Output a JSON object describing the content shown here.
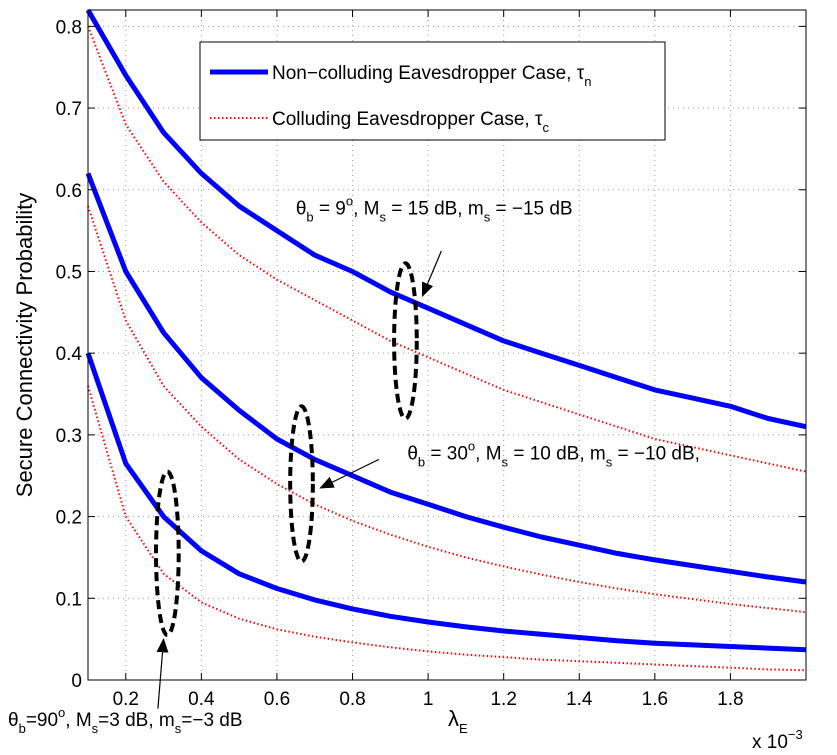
{
  "chart_data": {
    "type": "line",
    "ylabel": "Secure Connectivity Probability",
    "xlabel": {
      "main": "λ",
      "sub": "E"
    },
    "x_multiplier": {
      "prefix": "x 10",
      "exp": "−3"
    },
    "xlim": [
      0.1,
      2.0
    ],
    "ylim": [
      0,
      0.82
    ],
    "xticks": [
      0.2,
      0.4,
      0.6,
      0.8,
      1,
      1.2,
      1.4,
      1.6,
      1.8
    ],
    "xtick_labels": [
      "0.2",
      "0.4",
      "0.6",
      "0.8",
      "1",
      "1.2",
      "1.4",
      "1.6",
      "1.8"
    ],
    "yticks": [
      0,
      0.1,
      0.2,
      0.3,
      0.4,
      0.5,
      0.6,
      0.7,
      0.8
    ],
    "ytick_labels": [
      "0",
      "0.1",
      "0.2",
      "0.3",
      "0.4",
      "0.5",
      "0.6",
      "0.7",
      "0.8"
    ],
    "grid": true,
    "legend": {
      "placement": "top-center",
      "entries": [
        {
          "text": "Non−colluding Eavesdropper Case, τ",
          "sub": "n",
          "style": "solid",
          "color": "#0000ff"
        },
        {
          "text": "Colluding Eavesdropper Case, τ",
          "sub": "c",
          "style": "dotted",
          "color": "#ff0000"
        }
      ]
    },
    "x": [
      0.1,
      0.2,
      0.3,
      0.4,
      0.5,
      0.6,
      0.7,
      0.8,
      0.9,
      1.0,
      1.1,
      1.2,
      1.3,
      1.4,
      1.5,
      1.6,
      1.7,
      1.8,
      1.9,
      2.0
    ],
    "series": [
      {
        "group": "theta9",
        "style": "solid",
        "color": "#0000ff",
        "values": [
          0.82,
          0.74,
          0.67,
          0.62,
          0.58,
          0.55,
          0.52,
          0.5,
          0.475,
          0.455,
          0.435,
          0.415,
          0.4,
          0.385,
          0.37,
          0.355,
          0.345,
          0.335,
          0.32,
          0.31
        ]
      },
      {
        "group": "theta9",
        "style": "dotted",
        "color": "#ff0000",
        "values": [
          0.8,
          0.68,
          0.61,
          0.56,
          0.52,
          0.49,
          0.465,
          0.44,
          0.415,
          0.395,
          0.375,
          0.355,
          0.34,
          0.325,
          0.31,
          0.295,
          0.285,
          0.275,
          0.265,
          0.255
        ]
      },
      {
        "group": "theta30",
        "style": "solid",
        "color": "#0000ff",
        "values": [
          0.62,
          0.5,
          0.425,
          0.37,
          0.33,
          0.295,
          0.27,
          0.25,
          0.23,
          0.215,
          0.2,
          0.187,
          0.175,
          0.165,
          0.155,
          0.147,
          0.14,
          0.133,
          0.126,
          0.12
        ]
      },
      {
        "group": "theta30",
        "style": "dotted",
        "color": "#ff0000",
        "values": [
          0.58,
          0.44,
          0.36,
          0.31,
          0.27,
          0.24,
          0.215,
          0.195,
          0.178,
          0.163,
          0.15,
          0.139,
          0.129,
          0.12,
          0.112,
          0.105,
          0.099,
          0.093,
          0.088,
          0.083
        ]
      },
      {
        "group": "theta90",
        "style": "solid",
        "color": "#0000ff",
        "values": [
          0.4,
          0.265,
          0.2,
          0.158,
          0.13,
          0.112,
          0.098,
          0.087,
          0.078,
          0.071,
          0.065,
          0.06,
          0.056,
          0.052,
          0.048,
          0.045,
          0.043,
          0.041,
          0.039,
          0.037
        ]
      },
      {
        "group": "theta90",
        "style": "dotted",
        "color": "#ff0000",
        "values": [
          0.36,
          0.2,
          0.13,
          0.095,
          0.075,
          0.062,
          0.053,
          0.046,
          0.04,
          0.035,
          0.031,
          0.028,
          0.025,
          0.023,
          0.021,
          0.019,
          0.017,
          0.015,
          0.013,
          0.012
        ]
      }
    ],
    "annotations": [
      {
        "id": "theta9",
        "text": "θ_b = 9^o, M_s = 15 dB, m_s = −15 dB",
        "label_at": [
          0.65,
          0.57
        ],
        "ellipse": {
          "cx": 0.94,
          "cy": 0.415,
          "rx": 0.06,
          "ry": 0.095
        },
        "arrow_from": [
          1.035,
          0.525
        ],
        "arrow_to": [
          0.985,
          0.47
        ]
      },
      {
        "id": "theta30",
        "text": "θ_b = 30^o, M_s = 10 dB, m_s = −10 dB,",
        "label_at": [
          0.945,
          0.27
        ],
        "ellipse": {
          "cx": 0.665,
          "cy": 0.24,
          "rx": 0.06,
          "ry": 0.095
        },
        "arrow_from": [
          0.87,
          0.27
        ],
        "arrow_to": [
          0.715,
          0.235
        ]
      },
      {
        "id": "theta90",
        "text": "θ_b=90^o, M_s=3 dB, m_s=−3 dB",
        "label_at": [
          0.1,
          -0.085
        ],
        "ellipse": {
          "cx": 0.31,
          "cy": 0.155,
          "rx": 0.06,
          "ry": 0.1
        },
        "arrow_from": [
          0.285,
          -0.035
        ],
        "arrow_to": [
          0.3,
          0.05
        ]
      }
    ]
  }
}
